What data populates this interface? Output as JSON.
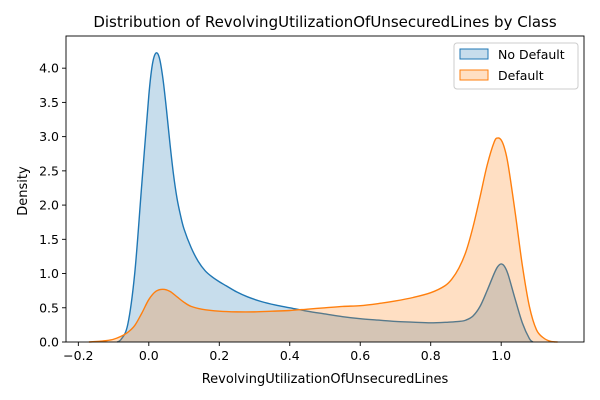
{
  "chart_data": {
    "type": "area",
    "title": "Distribution of RevolvingUtilizationOfUnsecuredLines by Class",
    "xlabel": "RevolvingUtilizationOfUnsecuredLines",
    "ylabel": "Density",
    "xlim": [
      -0.235,
      1.235
    ],
    "ylim": [
      0,
      4.47
    ],
    "xticks": [
      -0.2,
      0.0,
      0.2,
      0.4,
      0.6,
      0.8,
      1.0
    ],
    "xtick_labels": [
      "−0.2",
      "0.0",
      "0.2",
      "0.4",
      "0.6",
      "0.8",
      "1.0"
    ],
    "yticks": [
      0.0,
      0.5,
      1.0,
      1.5,
      2.0,
      2.5,
      3.0,
      3.5,
      4.0
    ],
    "ytick_labels": [
      "0.0",
      "0.5",
      "1.0",
      "1.5",
      "2.0",
      "2.5",
      "3.0",
      "3.5",
      "4.0"
    ],
    "grid": false,
    "legend_position": "top-right",
    "series": [
      {
        "name": "No Default",
        "color": "#1f77b4",
        "fill_color": "#1f77b4",
        "fill_opacity": 0.25,
        "x": [
          -0.09,
          -0.08,
          -0.06,
          -0.04,
          -0.02,
          0.0,
          0.01,
          0.02,
          0.03,
          0.04,
          0.05,
          0.06,
          0.07,
          0.08,
          0.09,
          0.1,
          0.12,
          0.14,
          0.16,
          0.18,
          0.2,
          0.22,
          0.25,
          0.28,
          0.32,
          0.36,
          0.4,
          0.45,
          0.5,
          0.55,
          0.6,
          0.65,
          0.7,
          0.75,
          0.8,
          0.85,
          0.88,
          0.9,
          0.92,
          0.94,
          0.96,
          0.98,
          0.99,
          1.0,
          1.01,
          1.02,
          1.04,
          1.06,
          1.08,
          1.09
        ],
        "y": [
          0.0,
          0.03,
          0.25,
          1.0,
          2.3,
          3.6,
          4.05,
          4.22,
          4.15,
          3.85,
          3.4,
          2.9,
          2.45,
          2.1,
          1.85,
          1.65,
          1.38,
          1.18,
          1.04,
          0.95,
          0.88,
          0.82,
          0.73,
          0.66,
          0.59,
          0.54,
          0.5,
          0.45,
          0.41,
          0.37,
          0.34,
          0.32,
          0.3,
          0.29,
          0.28,
          0.29,
          0.3,
          0.32,
          0.38,
          0.52,
          0.75,
          1.0,
          1.1,
          1.14,
          1.1,
          0.98,
          0.62,
          0.28,
          0.05,
          0.0
        ]
      },
      {
        "name": "Default",
        "color": "#ff7f0e",
        "fill_color": "#ff7f0e",
        "fill_opacity": 0.25,
        "x": [
          -0.17,
          -0.14,
          -0.12,
          -0.1,
          -0.08,
          -0.06,
          -0.04,
          -0.02,
          0.0,
          0.02,
          0.04,
          0.06,
          0.08,
          0.1,
          0.12,
          0.15,
          0.2,
          0.25,
          0.3,
          0.35,
          0.4,
          0.45,
          0.5,
          0.55,
          0.6,
          0.65,
          0.7,
          0.75,
          0.8,
          0.84,
          0.86,
          0.88,
          0.9,
          0.92,
          0.94,
          0.96,
          0.98,
          0.99,
          1.0,
          1.01,
          1.02,
          1.04,
          1.06,
          1.08,
          1.1,
          1.12,
          1.14,
          1.16
        ],
        "y": [
          0.0,
          0.01,
          0.02,
          0.04,
          0.08,
          0.14,
          0.24,
          0.42,
          0.62,
          0.74,
          0.77,
          0.74,
          0.66,
          0.58,
          0.52,
          0.48,
          0.45,
          0.44,
          0.44,
          0.45,
          0.46,
          0.48,
          0.5,
          0.52,
          0.53,
          0.56,
          0.6,
          0.65,
          0.72,
          0.82,
          0.92,
          1.08,
          1.32,
          1.68,
          2.12,
          2.58,
          2.92,
          2.98,
          2.95,
          2.82,
          2.58,
          1.88,
          1.12,
          0.52,
          0.18,
          0.06,
          0.01,
          0.0
        ]
      }
    ]
  }
}
